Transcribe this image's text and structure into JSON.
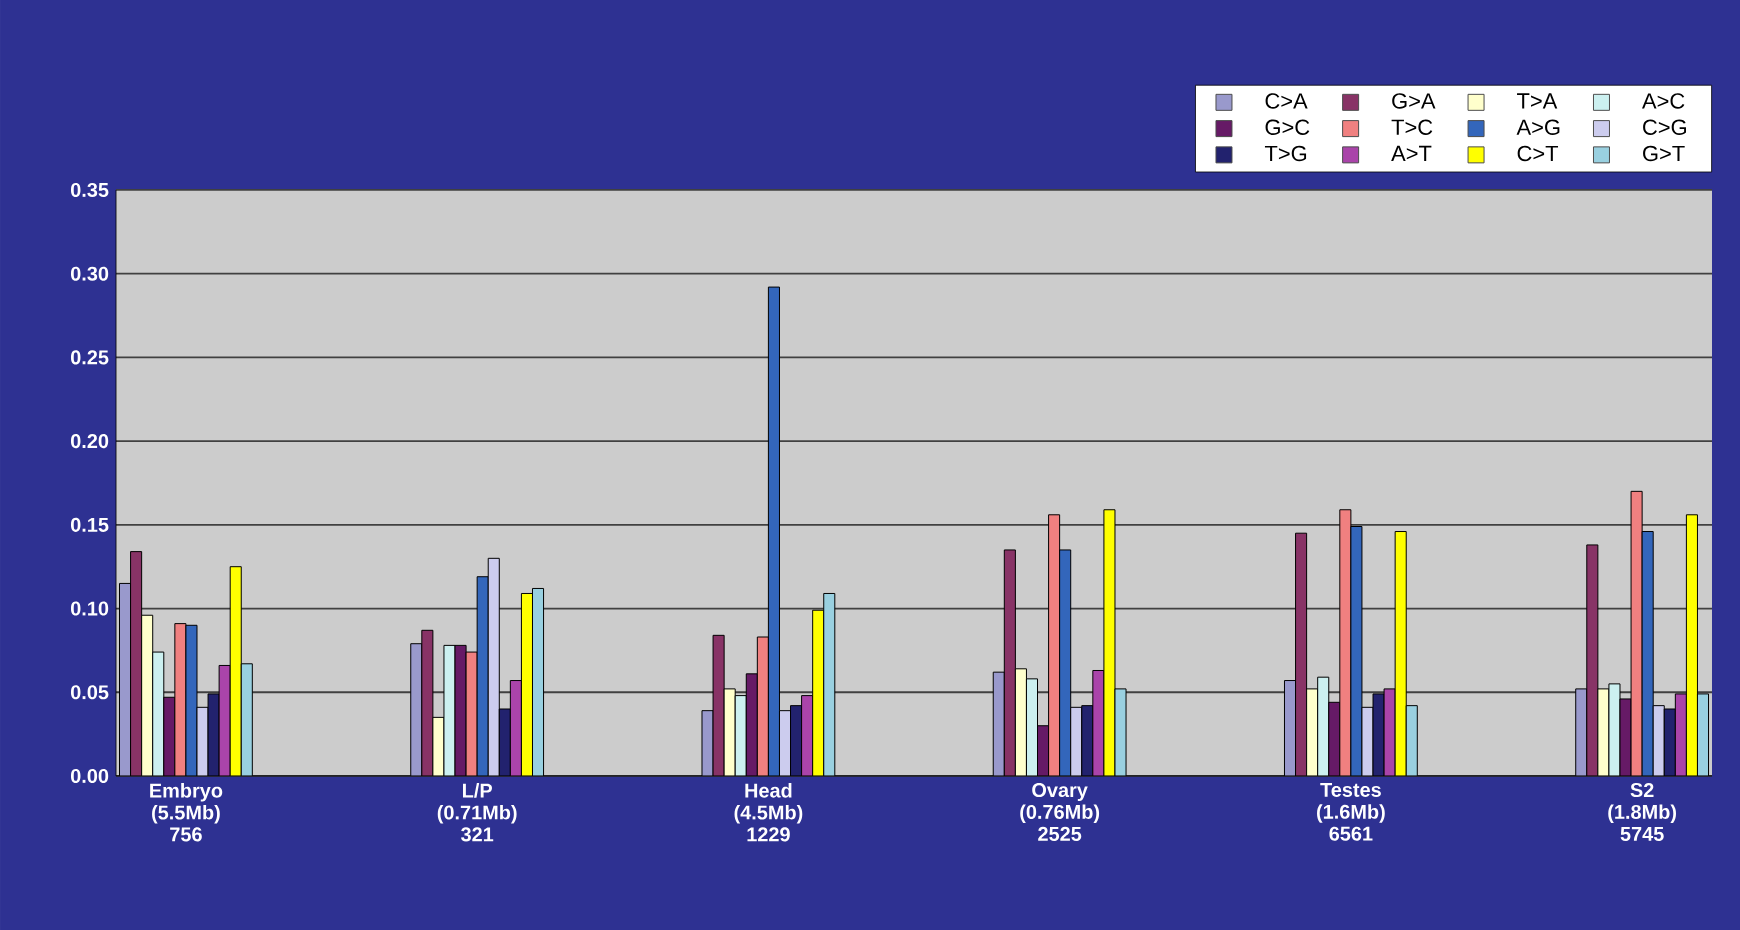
{
  "chart_data": {
    "type": "bar",
    "categories": [
      "Embryo (5.5Mb) 756",
      "L/P (0.71Mb) 321",
      "Head (4.5Mb) 1229",
      "Ovary (0.76Mb) 2525",
      "Testes (1.6Mb) 6561",
      "S2 (1.8Mb) 5745"
    ],
    "series": [
      {
        "name": "C>A",
        "color": "#9999cc",
        "values": [
          0.115,
          0.079,
          0.039,
          0.062,
          0.057,
          0.052
        ]
      },
      {
        "name": "G>A",
        "color": "#883366",
        "values": [
          0.134,
          0.087,
          0.084,
          0.135,
          0.145,
          0.138
        ]
      },
      {
        "name": "T>A",
        "color": "#ffffcc",
        "values": [
          0.096,
          0.035,
          0.052,
          0.064,
          0.052,
          0.052
        ]
      },
      {
        "name": "A>C",
        "color": "#ccf0f0",
        "values": [
          0.074,
          0.078,
          0.048,
          0.058,
          0.059,
          0.055
        ]
      },
      {
        "name": "G>C",
        "color": "#661a66",
        "values": [
          0.047,
          0.078,
          0.061,
          0.03,
          0.044,
          0.046
        ]
      },
      {
        "name": "T>C",
        "color": "#f08080",
        "values": [
          0.091,
          0.074,
          0.083,
          0.156,
          0.159,
          0.17
        ]
      },
      {
        "name": "A>G",
        "color": "#3366bb",
        "values": [
          0.09,
          0.119,
          0.292,
          0.135,
          0.149,
          0.146
        ]
      },
      {
        "name": "C>G",
        "color": "#ccccee",
        "values": [
          0.041,
          0.13,
          0.039,
          0.041,
          0.041,
          0.042
        ]
      },
      {
        "name": "T>G",
        "color": "#22226e",
        "values": [
          0.049,
          0.04,
          0.042,
          0.042,
          0.049,
          0.04
        ]
      },
      {
        "name": "A>T",
        "color": "#aa44aa",
        "values": [
          0.066,
          0.057,
          0.048,
          0.063,
          0.052,
          0.049
        ]
      },
      {
        "name": "C>T",
        "color": "#ffff00",
        "values": [
          0.125,
          0.109,
          0.099,
          0.159,
          0.146,
          0.156
        ]
      },
      {
        "name": "G>T",
        "color": "#99d0e0",
        "values": [
          0.067,
          0.112,
          0.109,
          0.052,
          0.042,
          0.049
        ]
      }
    ],
    "ylim": [
      0,
      0.35
    ],
    "yticks": [
      {
        "value": 0,
        "label": "0.00"
      },
      {
        "value": 0.05,
        "label": "0.05"
      },
      {
        "value": 0.1,
        "label": "0.10"
      },
      {
        "value": 0.15,
        "label": "0.15"
      },
      {
        "value": 0.2,
        "label": "0.20"
      },
      {
        "value": 0.25,
        "label": "0.25"
      },
      {
        "value": 0.3,
        "label": "0.30"
      },
      {
        "value": 0.35,
        "label": "0.35"
      }
    ],
    "grid": "y",
    "legend": "top right"
  }
}
